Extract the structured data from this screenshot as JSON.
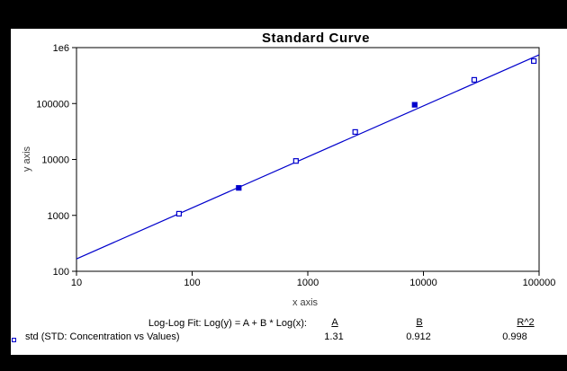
{
  "window": {
    "frame_color": "#000000",
    "canvas_color": "#ffffff"
  },
  "chart": {
    "title": "Standard Curve",
    "x_label": "x axis",
    "y_label": "y axis",
    "accent_color": "#0000cc",
    "axis_color": "#000000"
  },
  "chart_data": {
    "type": "scatter",
    "x_scale": "log",
    "y_scale": "log",
    "xlim": [
      10,
      100000
    ],
    "ylim": [
      100,
      1000000
    ],
    "x_ticks": [
      "10",
      "100",
      "1000",
      "10000",
      "100000"
    ],
    "y_ticks": [
      "100",
      "1000",
      "10000",
      "100000",
      "1e6"
    ],
    "grid": false,
    "series": [
      {
        "name": "std",
        "marker": "open-square",
        "x": [
          77,
          253,
          790,
          2570,
          8400,
          27500,
          90000
        ],
        "y": [
          1070,
          3100,
          9400,
          31000,
          95000,
          265000,
          575000
        ],
        "filled": [
          false,
          true,
          false,
          false,
          true,
          false,
          false
        ]
      }
    ],
    "fit": {
      "type": "log-log",
      "A": 1.31,
      "B": 0.912,
      "R2": 0.998,
      "x_start": 10,
      "x_end": 100000
    }
  },
  "fit_table": {
    "label": "Log-Log Fit: Log(y) = A + B * Log(x):",
    "headers": [
      "A",
      "B",
      "R^2"
    ],
    "values": [
      "1.31",
      "0.912",
      "0.998"
    ],
    "legend_label": "std (STD: Concentration vs Values)"
  }
}
